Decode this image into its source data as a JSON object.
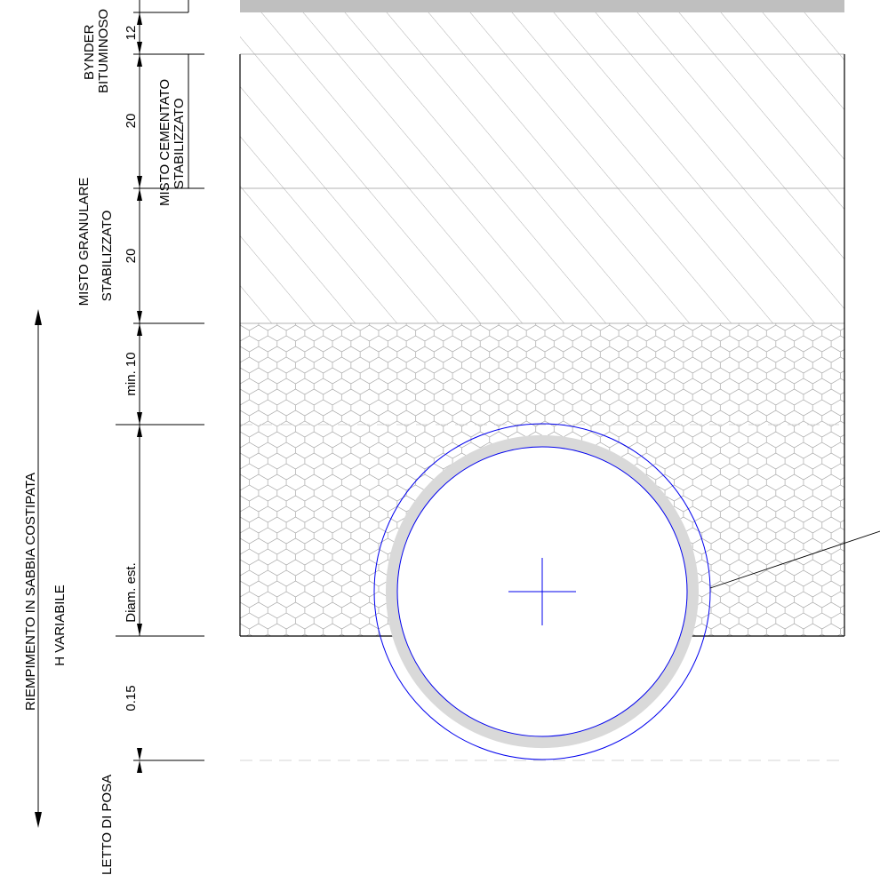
{
  "layers": [
    {
      "name": "BYNDER BITUMINOSO",
      "lines": [
        "BYNDER",
        "BITUMINOSO"
      ],
      "dimension": "12",
      "hatch": "diagonal"
    },
    {
      "name": "MISTO CEMENTATO STABILIZZATO",
      "lines": [
        "MISTO CEMENTATO",
        "STABILIZZATO"
      ],
      "dimension": "20",
      "hatch": "diagonal"
    },
    {
      "name": "MISTO GRANULARE STABILIZZATO",
      "lines": [
        "MISTO GRANULARE",
        "STABILIZZATO"
      ],
      "dimension": "20",
      "hatch": "diagonal"
    },
    {
      "name": "RIEMPIMENTO IN SABBIA COSTIPATA",
      "lines": [
        "RIEMPIMENTO IN SABBIA COSTIPATA",
        "H VARIABILE"
      ],
      "hatch": "honeycomb"
    }
  ],
  "sand_dimensions": [
    "min. 10",
    "Diam. est.",
    "0.15"
  ],
  "bedding_label": "LETTO DI POSA",
  "colors": {
    "ink": "#000000",
    "hatch": "#8c8c8c",
    "pipe_outline": "#0000ee",
    "pipe_wall": "#d9d9d9",
    "wearing_course": "#bfbfbf"
  }
}
